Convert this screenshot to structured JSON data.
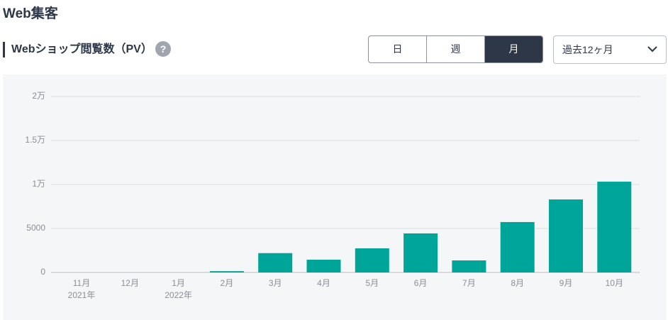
{
  "header": {
    "title": "Web集客"
  },
  "section": {
    "title": "Webショップ閲覧数（PV）",
    "help": "?"
  },
  "period_tabs": {
    "options": [
      "日",
      "週",
      "月"
    ],
    "selected": 2
  },
  "range_select": {
    "label": "過去12ヶ月"
  },
  "chart_data": {
    "type": "bar",
    "categories": [
      "11月",
      "12月",
      "1月",
      "2月",
      "3月",
      "4月",
      "5月",
      "6月",
      "7月",
      "8月",
      "9月",
      "10月"
    ],
    "year_labels": [
      "2021年",
      null,
      "2022年",
      null,
      null,
      null,
      null,
      null,
      null,
      null,
      null,
      null
    ],
    "values": [
      0,
      0,
      0,
      150,
      2200,
      1450,
      2740,
      4440,
      1370,
      5730,
      8300,
      10320
    ],
    "color": "#00a59a",
    "ylim": [
      0,
      20000
    ],
    "yticks": [
      0,
      5000,
      {
        "value": 10000,
        "label": "1万"
      },
      {
        "value": 15000,
        "label": "1.5万"
      },
      {
        "value": 20000,
        "label": "2万"
      }
    ],
    "grid": true
  }
}
